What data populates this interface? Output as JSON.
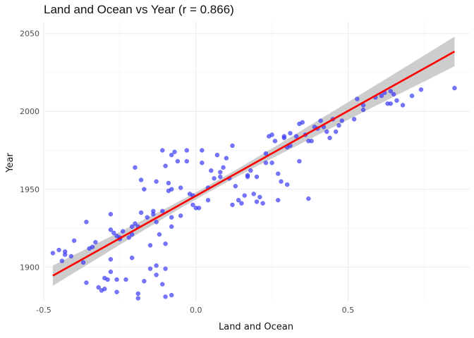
{
  "chart_data": {
    "type": "scatter",
    "title": "Land and Ocean vs Year (r = 0.866)",
    "xlabel": "Land and Ocean",
    "ylabel": "Year",
    "xlim": [
      -0.5,
      0.9
    ],
    "ylim": [
      1878,
      2058
    ],
    "x_ticks": [
      -0.5,
      0.0,
      0.5
    ],
    "x_tick_labels": [
      "-0.5",
      "0.0",
      "0.5"
    ],
    "y_ticks": [
      1900,
      1950,
      2000,
      2050
    ],
    "y_tick_labels": [
      "1900",
      "1950",
      "2000",
      "2050"
    ],
    "grid": true,
    "legend": "none",
    "point_color": "#3333ff",
    "fit_line_color": "#ff0000",
    "confidence_band_color": "#c8c8c8",
    "fit": {
      "x": [
        -0.47,
        0.85
      ],
      "y": [
        1894.5,
        2038.5
      ],
      "band_halfwidth_ends": [
        6.5,
        9.5
      ],
      "band_halfwidth_mid": 2.2,
      "x_mean": 0.05
    },
    "points": [
      [
        -0.47,
        1909
      ],
      [
        -0.45,
        1911
      ],
      [
        -0.44,
        1904
      ],
      [
        -0.43,
        1908
      ],
      [
        -0.43,
        1910
      ],
      [
        -0.41,
        1907
      ],
      [
        -0.4,
        1917
      ],
      [
        -0.37,
        1903
      ],
      [
        -0.36,
        1890
      ],
      [
        -0.36,
        1929
      ],
      [
        -0.35,
        1912
      ],
      [
        -0.34,
        1913
      ],
      [
        -0.33,
        1916
      ],
      [
        -0.32,
        1887
      ],
      [
        -0.31,
        1885
      ],
      [
        -0.3,
        1886
      ],
      [
        -0.3,
        1893
      ],
      [
        -0.29,
        1892
      ],
      [
        -0.28,
        1905
      ],
      [
        -0.28,
        1897
      ],
      [
        -0.28,
        1924
      ],
      [
        -0.28,
        1934
      ],
      [
        -0.27,
        1922
      ],
      [
        -0.26,
        1920
      ],
      [
        -0.26,
        1892
      ],
      [
        -0.26,
        1884
      ],
      [
        -0.25,
        1919
      ],
      [
        -0.25,
        1918
      ],
      [
        -0.24,
        1923
      ],
      [
        -0.23,
        1892
      ],
      [
        -0.22,
        1919
      ],
      [
        -0.21,
        1921
      ],
      [
        -0.21,
        1906
      ],
      [
        -0.21,
        1926
      ],
      [
        -0.2,
        1928
      ],
      [
        -0.2,
        1964
      ],
      [
        -0.19,
        1926
      ],
      [
        -0.19,
        1883
      ],
      [
        -0.19,
        1880
      ],
      [
        -0.18,
        1935
      ],
      [
        -0.18,
        1956
      ],
      [
        -0.17,
        1950
      ],
      [
        -0.17,
        1891
      ],
      [
        -0.16,
        1932
      ],
      [
        -0.15,
        1914
      ],
      [
        -0.15,
        1899
      ],
      [
        -0.14,
        1936
      ],
      [
        -0.14,
        1934
      ],
      [
        -0.13,
        1895
      ],
      [
        -0.13,
        1901
      ],
      [
        -0.13,
        1929
      ],
      [
        -0.13,
        1955
      ],
      [
        -0.12,
        1921
      ],
      [
        -0.11,
        1975
      ],
      [
        -0.11,
        1936
      ],
      [
        -0.11,
        1889
      ],
      [
        -0.1,
        1899
      ],
      [
        -0.1,
        1965
      ],
      [
        -0.1,
        1915
      ],
      [
        -0.1,
        1881
      ],
      [
        -0.09,
        1954
      ],
      [
        -0.09,
        1949
      ],
      [
        -0.08,
        1950
      ],
      [
        -0.08,
        1972
      ],
      [
        -0.08,
        1926
      ],
      [
        -0.08,
        1932
      ],
      [
        -0.08,
        1882
      ],
      [
        -0.07,
        1974
      ],
      [
        -0.06,
        1968
      ],
      [
        -0.05,
        1951
      ],
      [
        -0.05,
        1933
      ],
      [
        -0.03,
        1975
      ],
      [
        -0.03,
        1968
      ],
      [
        -0.02,
        1947
      ],
      [
        -0.01,
        1946
      ],
      [
        -0.01,
        1940
      ],
      [
        0.0,
        1938
      ],
      [
        0.01,
        1938
      ],
      [
        0.02,
        1967
      ],
      [
        0.02,
        1975
      ],
      [
        0.04,
        1943
      ],
      [
        0.04,
        1951
      ],
      [
        0.05,
        1962
      ],
      [
        0.06,
        1957
      ],
      [
        0.07,
        1972
      ],
      [
        0.08,
        1958
      ],
      [
        0.08,
        1961
      ],
      [
        0.09,
        1964
      ],
      [
        0.1,
        1970
      ],
      [
        0.11,
        1957
      ],
      [
        0.12,
        1940
      ],
      [
        0.12,
        1978
      ],
      [
        0.13,
        1952
      ],
      [
        0.14,
        1943
      ],
      [
        0.15,
        1941
      ],
      [
        0.16,
        1946
      ],
      [
        0.17,
        1959
      ],
      [
        0.17,
        1958
      ],
      [
        0.18,
        1962
      ],
      [
        0.19,
        1947
      ],
      [
        0.2,
        1942
      ],
      [
        0.2,
        1958
      ],
      [
        0.21,
        1945
      ],
      [
        0.22,
        1941
      ],
      [
        0.23,
        1967
      ],
      [
        0.23,
        1973
      ],
      [
        0.24,
        1984
      ],
      [
        0.25,
        1985
      ],
      [
        0.25,
        1967
      ],
      [
        0.26,
        1981
      ],
      [
        0.27,
        1960
      ],
      [
        0.27,
        1943
      ],
      [
        0.28,
        1955
      ],
      [
        0.29,
        1983
      ],
      [
        0.29,
        1984
      ],
      [
        0.3,
        1977
      ],
      [
        0.3,
        1953
      ],
      [
        0.31,
        1978
      ],
      [
        0.31,
        1986
      ],
      [
        0.33,
        1984
      ],
      [
        0.34,
        1968
      ],
      [
        0.34,
        1992
      ],
      [
        0.35,
        1993
      ],
      [
        0.36,
        1985
      ],
      [
        0.37,
        1981
      ],
      [
        0.37,
        1944
      ],
      [
        0.38,
        1981
      ],
      [
        0.39,
        1990
      ],
      [
        0.4,
        1989
      ],
      [
        0.41,
        1994
      ],
      [
        0.42,
        1990
      ],
      [
        0.43,
        1987
      ],
      [
        0.44,
        1983
      ],
      [
        0.45,
        1995
      ],
      [
        0.46,
        1987
      ],
      [
        0.47,
        1991
      ],
      [
        0.48,
        1994
      ],
      [
        0.52,
        1995
      ],
      [
        0.53,
        2008
      ],
      [
        0.55,
        2001
      ],
      [
        0.55,
        2004
      ],
      [
        0.59,
        2009
      ],
      [
        0.61,
        2010
      ],
      [
        0.62,
        2012
      ],
      [
        0.63,
        2005
      ],
      [
        0.64,
        2013
      ],
      [
        0.64,
        2005
      ],
      [
        0.65,
        2011
      ],
      [
        0.66,
        2007
      ],
      [
        0.68,
        2004
      ],
      [
        0.71,
        2010
      ],
      [
        0.74,
        2014
      ],
      [
        0.85,
        2015
      ]
    ]
  }
}
